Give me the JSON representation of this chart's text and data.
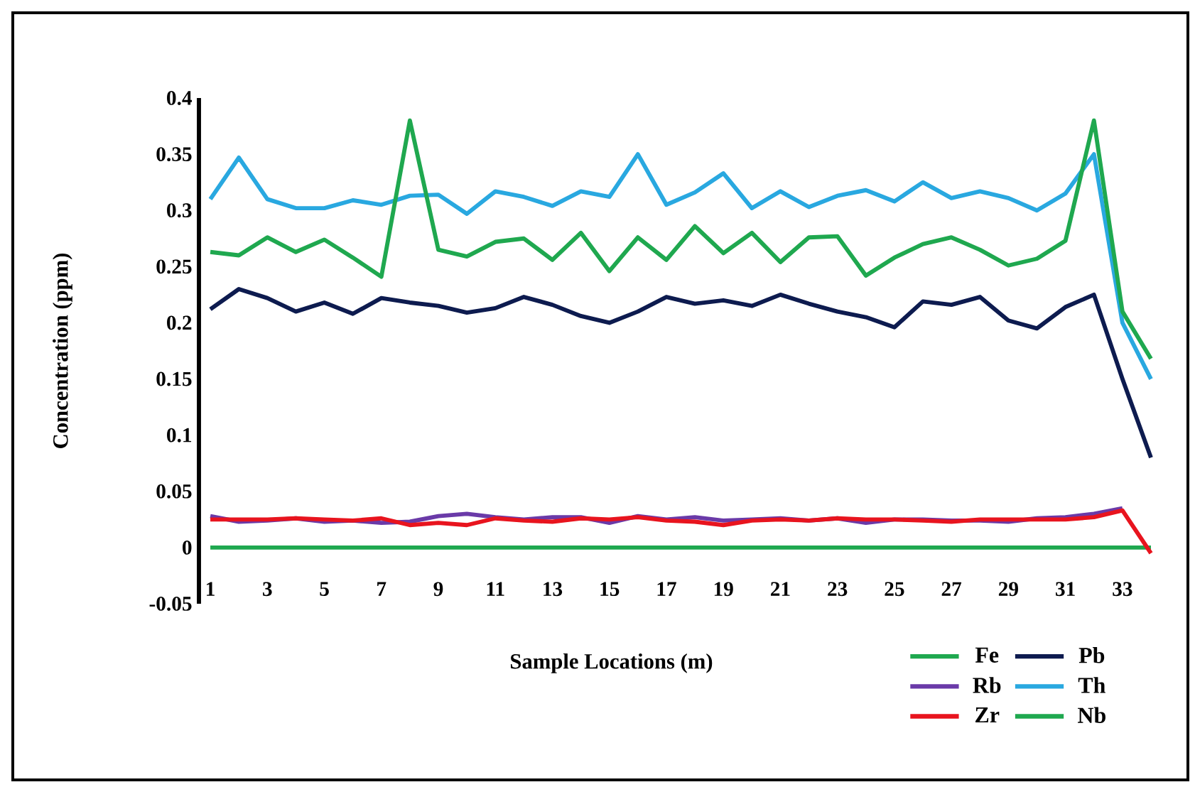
{
  "chart_data": {
    "type": "line",
    "xlabel": "Sample Locations (m)",
    "ylabel": "Concentration (ppm)",
    "categories": [
      "1",
      null,
      "3",
      null,
      "5",
      null,
      "7",
      null,
      "9",
      null,
      "11",
      null,
      "13",
      null,
      "15",
      null,
      "17",
      null,
      "19",
      null,
      "21",
      null,
      "23",
      null,
      "25",
      null,
      "27",
      null,
      "29",
      null,
      "31",
      null,
      "33",
      null
    ],
    "ylim": [
      -0.05,
      0.4
    ],
    "yticks": [
      -0.05,
      0,
      0.05,
      0.1,
      0.15,
      0.2,
      0.25,
      0.3,
      0.35,
      0.4
    ],
    "legend": "bottom right",
    "marker": "none",
    "line_style": "solid",
    "series": [
      {
        "name": "Fe",
        "color": "#1fa84f",
        "values": [
          0,
          0,
          0,
          0,
          0,
          0,
          0,
          0,
          0,
          0,
          0,
          0,
          0,
          0,
          0,
          0,
          0,
          0,
          0,
          0,
          0,
          0,
          0,
          0,
          0,
          0,
          0,
          0,
          0,
          0,
          0,
          0,
          0,
          0
        ]
      },
      {
        "name": "Pb",
        "color": "#0d1b4f",
        "values": [
          0.212,
          0.23,
          0.222,
          0.21,
          0.218,
          0.208,
          0.222,
          0.218,
          0.215,
          0.209,
          0.213,
          0.223,
          0.216,
          0.206,
          0.2,
          0.21,
          0.223,
          0.217,
          0.22,
          0.215,
          0.225,
          0.217,
          0.21,
          0.205,
          0.196,
          0.219,
          0.216,
          0.223,
          0.202,
          0.195,
          0.214,
          0.225,
          0.15,
          0.08
        ]
      },
      {
        "name": "Rb",
        "color": "#6a3aa8",
        "values": [
          0.028,
          0.023,
          0.024,
          0.026,
          0.023,
          0.024,
          0.022,
          0.023,
          0.028,
          0.03,
          0.027,
          0.025,
          0.027,
          0.027,
          0.022,
          0.028,
          0.025,
          0.027,
          0.024,
          0.025,
          0.026,
          0.024,
          0.026,
          0.022,
          0.025,
          0.025,
          0.024,
          0.024,
          0.023,
          0.026,
          0.027,
          0.03,
          0.035,
          null
        ]
      },
      {
        "name": "Th",
        "color": "#29a8e0",
        "values": [
          0.31,
          0.347,
          0.31,
          0.302,
          0.302,
          0.309,
          0.305,
          0.313,
          0.314,
          0.297,
          0.317,
          0.312,
          0.304,
          0.317,
          0.312,
          0.35,
          0.305,
          0.316,
          0.333,
          0.302,
          0.317,
          0.303,
          0.313,
          0.318,
          0.308,
          0.325,
          0.311,
          0.317,
          0.311,
          0.3,
          0.315,
          0.35,
          0.2,
          0.15
        ]
      },
      {
        "name": "Zr",
        "color": "#e8141e",
        "values": [
          0.025,
          0.025,
          0.025,
          0.026,
          0.025,
          0.024,
          0.026,
          0.02,
          0.022,
          0.02,
          0.026,
          0.024,
          0.023,
          0.026,
          0.025,
          0.027,
          0.024,
          0.023,
          0.02,
          0.024,
          0.025,
          0.024,
          0.026,
          0.025,
          0.025,
          0.024,
          0.023,
          0.025,
          0.025,
          0.025,
          0.025,
          0.027,
          0.033,
          -0.005
        ]
      },
      {
        "name": "Nb",
        "color": "#1fa84f",
        "values": [
          0.263,
          0.26,
          0.276,
          0.263,
          0.274,
          0.258,
          0.241,
          0.38,
          0.265,
          0.259,
          0.272,
          0.275,
          0.256,
          0.28,
          0.246,
          0.276,
          0.256,
          0.286,
          0.262,
          0.28,
          0.254,
          0.276,
          0.277,
          0.242,
          0.258,
          0.27,
          0.276,
          0.265,
          0.251,
          0.257,
          0.273,
          0.38,
          0.21,
          0.168
        ]
      }
    ]
  }
}
